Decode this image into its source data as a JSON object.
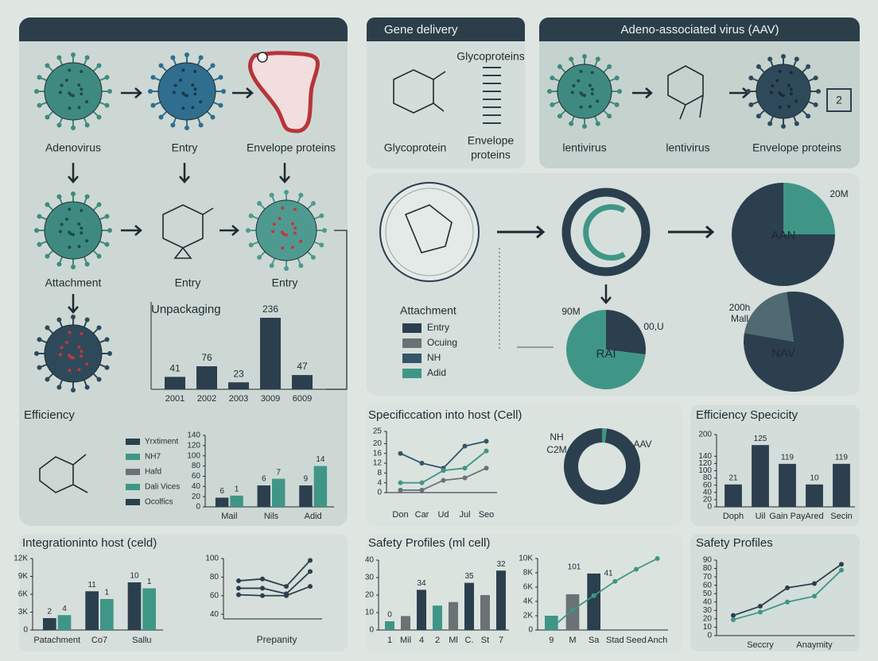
{
  "left_panel": {
    "labels": [
      "Adenovirus",
      "Entry",
      "Envelope proteins",
      "Attachment",
      "Entry",
      "Entry"
    ]
  },
  "gene_delivery": {
    "title": "Gene delivery",
    "labels": [
      "Glycoproteins",
      "Glycoprotein"
    ],
    "envelope": [
      "Envelope",
      "proteins"
    ]
  },
  "aav_panel": {
    "title": "Adeno-associated virus (AAV)",
    "labels": [
      "lentivirus",
      "lentivirus",
      "Envelope proteins",
      "2"
    ]
  },
  "middle_legend": {
    "title": "Attachment",
    "items": [
      {
        "label": "Entry",
        "color": "#2b3f4e"
      },
      {
        "label": "Ocuing",
        "color": "#6b7275"
      },
      {
        "label": "NH",
        "color": "#34556a"
      },
      {
        "label": "Adid",
        "color": "#3f9686"
      }
    ]
  },
  "chart_data": [
    {
      "type": "bar",
      "title": "Unpackaging",
      "categories": [
        "2001",
        "2002",
        "2003",
        "3009",
        "6009"
      ],
      "values": [
        41,
        76,
        23,
        236,
        47
      ],
      "color": "#2b3f4e"
    },
    {
      "type": "bar",
      "title": "Efficiency",
      "categories": [
        "Mail",
        "Nils",
        "Adid"
      ],
      "series": [
        {
          "name": "Yrxtiment",
          "color": "#2b3f4e",
          "values": [
            18,
            42,
            42
          ]
        },
        {
          "name": "NH7",
          "color": "#3f9686",
          "values": [
            22,
            55,
            80
          ]
        },
        {
          "name": "Hafd",
          "color": "#6b7275",
          "values": [
            null,
            null,
            null
          ]
        },
        {
          "name": "Dali Vices",
          "color": "#3f9686",
          "values": [
            null,
            null,
            null
          ]
        },
        {
          "name": "Ocolfics",
          "color": "#2b3f4e",
          "values": [
            null,
            null,
            null
          ]
        }
      ],
      "ylim": [
        0,
        140
      ],
      "yticks": [
        0,
        20,
        40,
        60,
        80,
        100,
        120,
        140
      ],
      "annotations": [
        "6",
        "1",
        "6",
        "7",
        "9",
        "14"
      ]
    },
    {
      "type": "pie",
      "values": [
        25,
        75
      ],
      "colors": [
        "#3f9686",
        "#2b3f4e"
      ],
      "annotations": [
        "AAN",
        "20M"
      ]
    },
    {
      "type": "pie",
      "values": [
        27,
        73
      ],
      "colors": [
        "#2b3f4e",
        "#3f9686"
      ],
      "annotations": [
        "RAI",
        "90M",
        "00,U"
      ]
    },
    {
      "type": "pie",
      "values": [
        20,
        80
      ],
      "colors": [
        "#4f6a73",
        "#2b3f4e"
      ],
      "annotations": [
        "NAV",
        "200h",
        "Mall"
      ]
    },
    {
      "type": "line",
      "title": "Specificcation into host (Cell)",
      "categories": [
        "Don",
        "Car",
        "Ud",
        "Jul",
        "Seo"
      ],
      "series": [
        {
          "color": "#34556a",
          "values": [
            16,
            12,
            10,
            19,
            21
          ]
        },
        {
          "color": "#3f9686",
          "values": [
            4,
            4,
            9,
            10,
            17
          ]
        },
        {
          "color": "#6b7275",
          "values": [
            1,
            1,
            5,
            6,
            10
          ]
        }
      ],
      "ylim": [
        0,
        25
      ],
      "yticks": [
        0,
        4,
        8,
        12,
        16,
        20,
        25
      ]
    },
    {
      "type": "donut",
      "values": [
        2,
        98
      ],
      "colors": [
        "#3f9686",
        "#2b3f4e"
      ],
      "annotations": [
        "NH",
        "C2M",
        "AAV"
      ]
    },
    {
      "type": "bar",
      "title": "Efficiency Specicity",
      "categories": [
        "Doph",
        "Uil",
        "Gain Pay",
        "Ared",
        "Secin"
      ],
      "values": [
        62,
        171,
        119,
        62,
        119
      ],
      "color": "#2b3f4e",
      "ylim": [
        0,
        200
      ],
      "yticks": [
        0,
        20,
        40,
        60,
        80,
        100,
        120,
        140,
        200
      ],
      "annotations": [
        "21",
        "125",
        "119",
        "10",
        "119"
      ]
    },
    {
      "type": "bar",
      "title": "Integrationinto host (celd)",
      "categories": [
        "Patachment",
        "Co7",
        "Sallu"
      ],
      "series": [
        {
          "color": "#2b3f4e",
          "values": [
            2000,
            6500,
            8000
          ]
        },
        {
          "color": "#3f9686",
          "values": [
            2500,
            5200,
            7000
          ]
        }
      ],
      "ylim": [
        0,
        12000
      ],
      "yticks": [
        0,
        {
          "value": 3000,
          "label": "3K"
        },
        {
          "value": 6000,
          "label": "6K"
        },
        {
          "value": 9000,
          "label": "9K"
        },
        {
          "value": 12000,
          "label": "12K"
        }
      ],
      "annotations": [
        "2",
        "4",
        "11",
        "1",
        "10",
        "1"
      ]
    },
    {
      "type": "line",
      "x_label": "Prepanity",
      "categories": [
        null,
        null,
        null,
        null
      ],
      "series": [
        {
          "color": "#2b3f4e",
          "values": [
            76,
            78,
            70,
            98
          ]
        },
        {
          "color": "#2b3f4e",
          "values": [
            68,
            68,
            62,
            86
          ]
        },
        {
          "color": "#2b3f4e",
          "values": [
            61,
            60,
            60,
            70
          ]
        }
      ],
      "ylim": [
        35,
        100
      ],
      "yticks": [
        40,
        60,
        80,
        100
      ]
    },
    {
      "type": "bar",
      "title": "Safety Profiles (ml cell)",
      "categories": [
        "1",
        "Mil",
        "4",
        "2",
        "Ml",
        "C.",
        "St",
        "7"
      ],
      "values": [
        5,
        8,
        23,
        14,
        16,
        27,
        20,
        34
      ],
      "colors": [
        "#3f9686",
        "#6b7275",
        "#2b3f4e",
        "#3f9686",
        "#6b7275",
        "#2b3f4e",
        "#6b7275",
        "#2b3f4e"
      ],
      "ylim": [
        0,
        40
      ],
      "yticks": [
        0,
        10,
        20,
        30,
        40
      ],
      "annotations": [
        "0",
        "34",
        "35",
        "32"
      ]
    },
    {
      "type": "bar_line",
      "categories": [
        "9",
        "M",
        "Sa",
        "Stad",
        "Seed",
        "Anch"
      ],
      "values": [
        2000,
        5000,
        7900,
        null,
        null,
        null
      ],
      "colors": [
        "#3f9686",
        "#6b7275",
        "#2b3f4e",
        "#2b3f4e",
        "#2b3f4e",
        "#2b3f4e"
      ],
      "line": {
        "color": "#3f9686",
        "values": [
          300,
          2800,
          4800,
          6800,
          8500,
          10000
        ]
      },
      "ylim": [
        0,
        10000
      ],
      "yticks": [
        0,
        {
          "value": 2000,
          "label": "2K"
        },
        {
          "value": 4000,
          "label": "4K"
        },
        {
          "value": 6000,
          "label": "6K"
        },
        {
          "value": 8000,
          "label": "8K"
        },
        {
          "value": 10000,
          "label": "10K"
        }
      ],
      "annotations": [
        "101",
        "41"
      ]
    },
    {
      "type": "line",
      "title": "Safety Profiles",
      "categories": [
        null,
        "Seccry",
        null,
        "Anaymity",
        null
      ],
      "series": [
        {
          "color": "#2b3f4e",
          "values": [
            24,
            35,
            57,
            62,
            85
          ]
        },
        {
          "color": "#3f9686",
          "values": [
            19,
            28,
            40,
            47,
            78
          ]
        }
      ],
      "ylim": [
        0,
        90
      ],
      "yticks": [
        0,
        10,
        20,
        30,
        40,
        50,
        60,
        70,
        80,
        90
      ]
    }
  ]
}
